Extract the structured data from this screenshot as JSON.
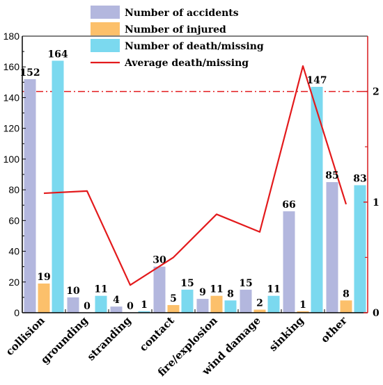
{
  "chart_data": {
    "type": "bar",
    "title": "",
    "xlabel": "",
    "ylabel": "",
    "categories": [
      "collision",
      "grounding",
      "stranding",
      "contact",
      "fire/explosion",
      "wind damage",
      "sinking",
      "other"
    ],
    "ylim": [
      0,
      180
    ],
    "y_ticks": [
      0,
      20,
      40,
      60,
      80,
      100,
      120,
      140,
      160,
      180
    ],
    "y2lim": [
      0,
      2.5
    ],
    "y2_ticks": [
      0,
      1,
      2
    ],
    "series": [
      {
        "name": "Number of accidents",
        "type": "bar",
        "color": "#b3b7de",
        "values": [
          152,
          10,
          4,
          30,
          9,
          15,
          66,
          85
        ]
      },
      {
        "name": "Number of injured",
        "type": "bar",
        "color": "#fcc06b",
        "values": [
          19,
          0,
          0,
          5,
          11,
          2,
          1,
          8
        ]
      },
      {
        "name": "Number of death/missing",
        "type": "bar",
        "color": "#7bd9ef",
        "values": [
          164,
          11,
          1,
          15,
          8,
          11,
          147,
          83
        ]
      },
      {
        "name": "Average death/missing",
        "type": "line",
        "axis": "right",
        "color": "#e31a1c",
        "values": [
          1.08,
          1.1,
          0.25,
          0.5,
          0.89,
          0.73,
          2.23,
          0.98
        ]
      }
    ],
    "reference_line": {
      "axis": "right",
      "value": 2,
      "style": "dash-dot",
      "color": "#e31a1c"
    },
    "axis_colors": {
      "left": "#000000",
      "right": "#d7191c"
    },
    "grid": false,
    "legend_position": "top-center"
  }
}
